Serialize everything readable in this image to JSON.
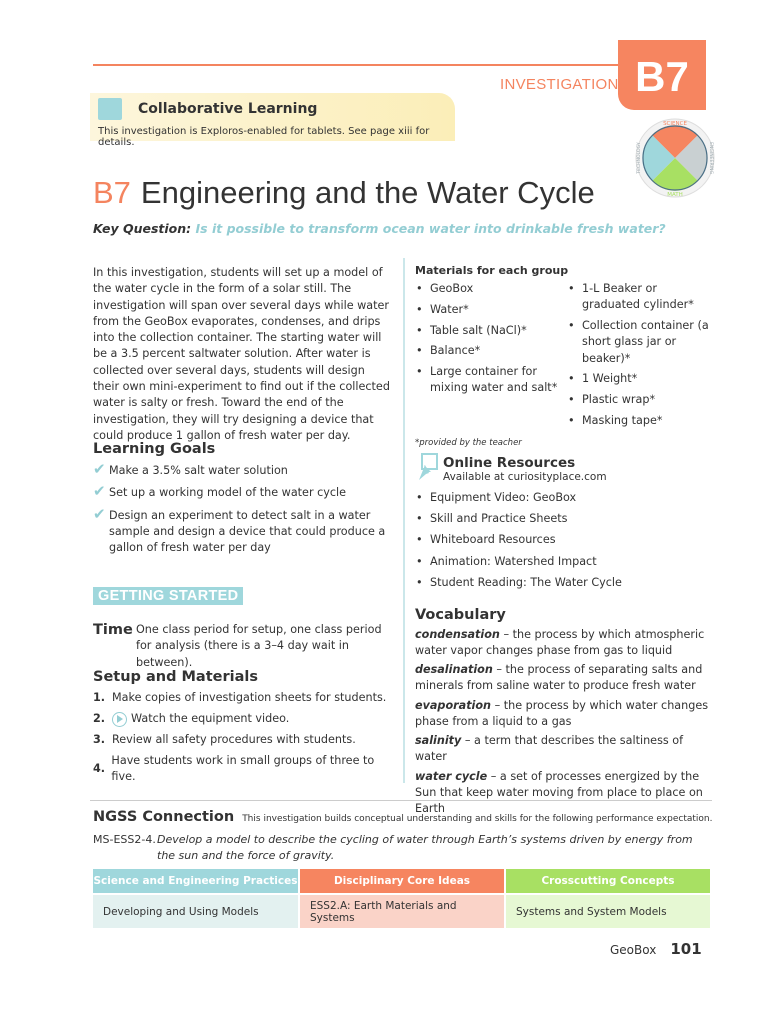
{
  "header": {
    "section_label": "INVESTIGATION",
    "tab": "B7",
    "badge_labels": [
      "SCIENCE",
      "ENGINEERING",
      "MATH",
      "TECHNOLOGY"
    ]
  },
  "collab": {
    "title": "Collaborative Learning",
    "subtitle": "This investigation is Exploros-enabled for tablets. See page xiii for details."
  },
  "title": {
    "number": "B7",
    "text": "Engineering and the Water Cycle"
  },
  "key_question": {
    "label": "Key Question:",
    "text": "Is it possible to transform ocean water into drinkable fresh water?"
  },
  "intro": "In this investigation, students will set up a model of the water cycle in the form of a solar still. The investigation will span over several days while water from the GeoBox evaporates, condenses, and drips into the collection container. The starting water will be a 3.5 percent saltwater solution. After water is collected over several days, students will design their own mini-experiment to find out if the collected water is salty or fresh. Toward the end of the investigation, they will try designing a device that could produce 1 gallon of fresh water per day.",
  "learning_goals": {
    "heading": "Learning Goals",
    "items": [
      "Make a 3.5% salt water solution",
      "Set up a working model of the water cycle",
      "Design an experiment to detect salt in a water sample and design a device that could produce a gallon of fresh water per day"
    ]
  },
  "getting_started": "GETTING STARTED",
  "time": {
    "label": "Time",
    "text": "One class period for setup, one class period for analysis (there is a 3–4 day wait in between)."
  },
  "setup": {
    "heading": "Setup and Materials",
    "steps": [
      {
        "n": "1.",
        "text": "Make copies of investigation sheets for students."
      },
      {
        "n": "2.",
        "text": "Watch the equipment video."
      },
      {
        "n": "3.",
        "text": "Review all safety procedures with students."
      },
      {
        "n": "4.",
        "text": "Have students work in small groups of three to five."
      }
    ]
  },
  "materials": {
    "heading": "Materials for each group",
    "col1": [
      "GeoBox",
      "Water*",
      "Table salt (NaCl)*",
      "Balance*",
      "Large container for mixing water and salt*"
    ],
    "col2": [
      "1-L Beaker or graduated cylinder*",
      "Collection container (a short glass jar or beaker)*",
      "1 Weight*",
      "Plastic wrap*",
      "Masking tape*"
    ],
    "footnote": "*provided by the teacher"
  },
  "online": {
    "title": "Online Resources",
    "subtitle": "Available at curiosityplace.com",
    "items": [
      "Equipment Video: GeoBox",
      "Skill and Practice Sheets",
      "Whiteboard Resources",
      "Animation: Watershed Impact",
      "Student Reading: The Water Cycle"
    ]
  },
  "vocabulary": {
    "heading": "Vocabulary",
    "terms": [
      {
        "term": "condensation",
        "def": " – the process by which atmospheric water vapor changes phase from gas to liquid"
      },
      {
        "term": "desalination",
        "def": " – the process of separating salts and minerals from saline water to produce fresh water"
      },
      {
        "term": "evaporation",
        "def": " – the process by which water changes phase from a liquid to a gas"
      },
      {
        "term": "salinity",
        "def": " – a term that describes the saltiness of water"
      },
      {
        "term": "water cycle",
        "def": " – a set of processes energized by the Sun that keep water moving from place to place on Earth"
      }
    ]
  },
  "ngss": {
    "title": "NGSS Connection",
    "desc": "This investigation builds conceptual understanding and skills for the following performance expectation.",
    "code": "MS-ESS2-4.",
    "expectation": "Develop a model to describe the cycling of water through Earth’s systems driven by energy from the sun and the force of gravity.",
    "table": {
      "headers": [
        "Science and Engineering Practices",
        "Disciplinary Core Ideas",
        "Crosscutting Concepts"
      ],
      "cells": [
        "Developing and Using Models",
        "ESS2.A: Earth Materials and Systems",
        "Systems and System Models"
      ]
    }
  },
  "colors": {
    "orange": "#f68560",
    "teal": "#9fd7dc",
    "green": "#a8e063",
    "orange_light": "#fad3c8",
    "teal_light": "#e3f1f0",
    "green_light": "#e6f8d3"
  },
  "footer": {
    "book": "GeoBox",
    "page": "101"
  }
}
